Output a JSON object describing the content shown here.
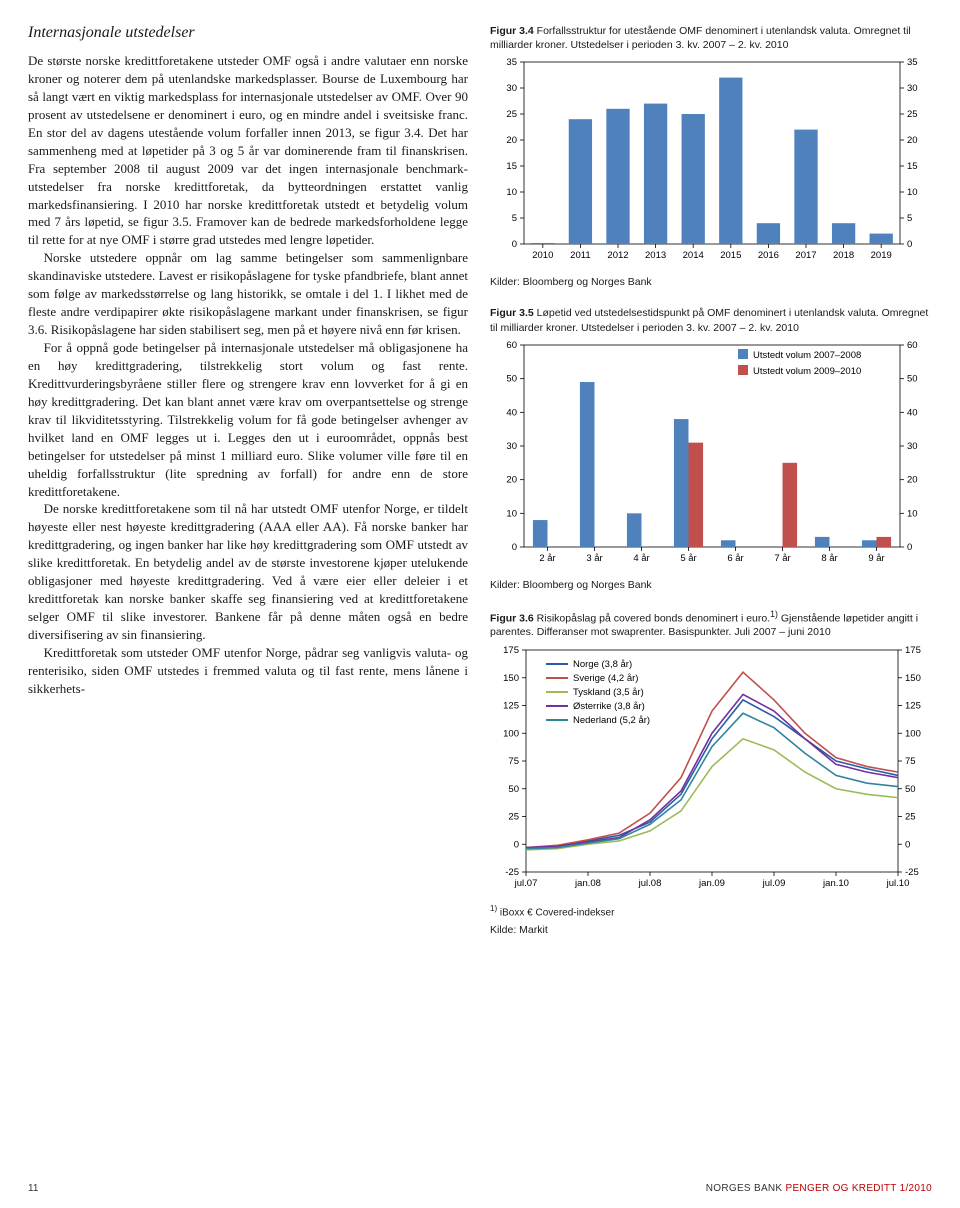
{
  "left": {
    "section_title": "Internasjonale utstedelser",
    "p1": "De største norske kredittforetakene utsteder OMF også i andre valutaer enn norske kroner og noterer dem på utenlandske markedsplasser. Bourse de Luxembourg har så langt vært en viktig markedsplass for internasjonale utstedelser av OMF. Over 90 prosent av utstedelsene er denominert i euro, og en mindre andel i sveitsiske franc. En stor del av dagens utestående volum forfaller innen 2013, se figur 3.4. Det har sammenheng med at løpetider på 3 og 5 år var dominerende fram til finanskrisen. Fra september 2008 til august 2009 var det ingen internasjonale benchmark-utstedelser fra norske kredittforetak, da bytteordningen erstattet vanlig markedsfinansiering. I 2010 har norske kredittforetak utstedt et betydelig volum med 7 års løpetid, se figur 3.5. Framover kan de bedrede markedsforholdene legge til rette for at nye OMF i større grad utstedes med lengre løpetider.",
    "p2": "Norske utstedere oppnår om lag samme betingelser som sammenlignbare skandinaviske utstedere. Lavest er risikopåslagene for tyske pfandbriefe, blant annet som følge av markedsstørrelse og lang historikk, se omtale i del 1. I likhet med de fleste andre verdipapirer økte risikopåslagene markant under finanskrisen, se figur 3.6. Risikopåslagene har siden stabilisert seg, men på et høyere nivå enn før krisen.",
    "p3": "For å oppnå gode betingelser på internasjonale utstedelser må obligasjonene ha en høy kredittgradering, tilstrekkelig stort volum og fast rente. Kredittvurderingsbyråene stiller flere og strengere krav enn lovverket for å gi en høy kredittgradering. Det kan blant annet være krav om overpantsettelse og strenge krav til likviditetsstyring. Tilstrekkelig volum for få gode betingelser avhenger av hvilket land en OMF legges ut i. Legges den ut i euroområdet, oppnås best betingelser for utstedelser på minst 1 milliard euro. Slike volumer ville føre til en uheldig forfallsstruktur (lite spredning av forfall) for andre enn de store kredittforetakene.",
    "p4": "De norske kredittforetakene som til nå har utstedt OMF utenfor Norge, er tildelt høyeste eller nest høyeste kredittgradering (AAA eller AA). Få norske banker har kredittgradering, og ingen banker har like høy kredittgradering som OMF utstedt av slike kredittforetak. En betydelig andel av de største investorene kjøper utelukende obligasjoner med høyeste kredittgradering. Ved å være eier eller deleier i et kredittforetak kan norske banker skaffe seg finansiering ved at kredittforetakene selger OMF til slike investorer. Bankene får på denne måten også en bedre diversifisering av sin finansiering.",
    "p5": "Kredittforetak som utsteder OMF utenfor Norge, pådrar seg vanligvis valuta- og renterisiko, siden OMF utstedes i fremmed valuta og til fast rente, mens lånene i sikkerhets-"
  },
  "chart34": {
    "caption_bold": "Figur 3.4",
    "caption_rest": " Forfallsstruktur for utestående OMF denominert i utenlandsk valuta. Omregnet til milliarder kroner. Utstedelser i perioden 3. kv. 2007 – 2. kv. 2010",
    "type": "bar",
    "categories": [
      "2010",
      "2011",
      "2012",
      "2013",
      "2014",
      "2015",
      "2016",
      "2017",
      "2018",
      "2019"
    ],
    "values": [
      0.2,
      24,
      26,
      27,
      25,
      32,
      4,
      22,
      4,
      2
    ],
    "bar_color": "#4f81bd",
    "ylim": [
      0,
      35
    ],
    "ytick_step": 5,
    "axis_fontsize": 9.5,
    "plot_bg": "#ffffff",
    "source": "Kilder: Bloomberg og Norges Bank"
  },
  "chart35": {
    "caption_bold": "Figur 3.5",
    "caption_rest": " Løpetid ved utstedelsestidspunkt på OMF denominert i utenlandsk valuta. Omregnet til milliarder kroner. Utstedelser i perioden 3. kv. 2007 – 2. kv. 2010",
    "type": "grouped-bar",
    "categories": [
      "2 år",
      "3 år",
      "4 år",
      "5 år",
      "6 år",
      "7 år",
      "8 år",
      "9 år"
    ],
    "series": [
      {
        "name": "Utstedt volum 2007–2008",
        "color": "#4f81bd",
        "values": [
          8,
          49,
          10,
          38,
          2,
          0,
          3,
          2
        ]
      },
      {
        "name": "Utstedt volum 2009–2010",
        "color": "#c0504d",
        "values": [
          0,
          0,
          0,
          31,
          0,
          25,
          0,
          3
        ]
      }
    ],
    "ylim": [
      0,
      60
    ],
    "ytick_step": 10,
    "axis_fontsize": 9.5,
    "legend_pos": "top-right",
    "legend_fontsize": 9.5,
    "source": "Kilder: Bloomberg og Norges Bank"
  },
  "chart36": {
    "caption_bold": "Figur 3.6",
    "caption_rest": " Risikopåslag på covered bonds denominert i euro.",
    "caption_sup": "1)",
    "caption_cont": " Gjenstående løpetider angitt i parentes. Differanser mot swaprenter. Basispunkter. Juli 2007 – juni 2010",
    "type": "line",
    "xlabels": [
      "jul.07",
      "jan.08",
      "jul.08",
      "jan.09",
      "jul.09",
      "jan.10",
      "jul.10"
    ],
    "ylim": [
      -25,
      175
    ],
    "ytick_step": 25,
    "axis_fontsize": 9.5,
    "series": [
      {
        "name": "Norge (3,8 år)",
        "color": "#2a5caa",
        "values": [
          -3,
          -2,
          3,
          8,
          20,
          45,
          95,
          130,
          115,
          95,
          75,
          68,
          62
        ]
      },
      {
        "name": "Sverige (4,2 år)",
        "color": "#c0504d",
        "values": [
          -3,
          -1,
          4,
          10,
          28,
          60,
          120,
          155,
          130,
          100,
          78,
          70,
          65
        ]
      },
      {
        "name": "Tyskland (3,5 år)",
        "color": "#9bbb59",
        "values": [
          -5,
          -4,
          0,
          3,
          12,
          30,
          70,
          95,
          85,
          65,
          50,
          45,
          42
        ]
      },
      {
        "name": "Østerrike (3,8 år)",
        "color": "#7030a0",
        "values": [
          -3,
          -2,
          2,
          6,
          22,
          48,
          100,
          135,
          120,
          95,
          72,
          65,
          60
        ]
      },
      {
        "name": "Nederland (5,2 år)",
        "color": "#31859b",
        "values": [
          -4,
          -3,
          1,
          5,
          18,
          40,
          88,
          118,
          105,
          82,
          62,
          55,
          52
        ]
      }
    ],
    "legend_fontsize": 9.5,
    "footnote": "iBoxx € Covered-indekser",
    "footnote_sup": "1)",
    "source": "Kilde: Markit"
  },
  "footer": {
    "page": "11",
    "bank": "NORGES BANK",
    "pub": " PENGER OG KREDITT 1/2010"
  }
}
